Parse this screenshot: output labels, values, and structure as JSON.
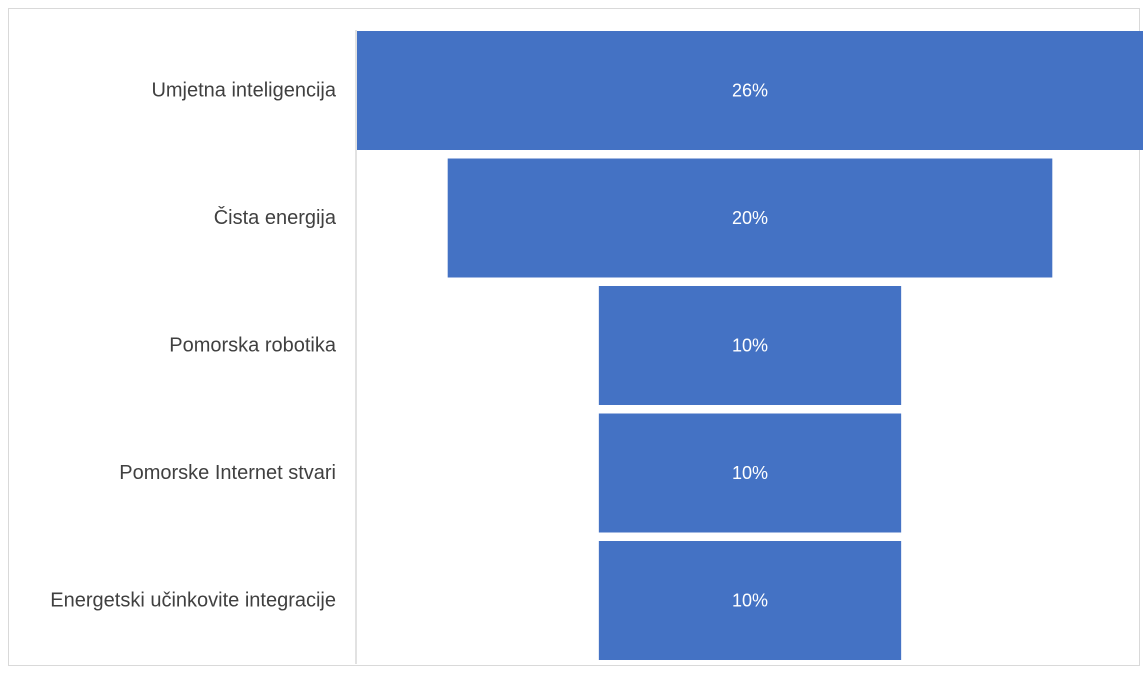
{
  "chart_data": {
    "type": "bar",
    "subtype": "funnel",
    "orientation": "horizontal",
    "categories": [
      "Umjetna inteligencija",
      "Čista energija",
      "Pomorska robotika",
      "Pomorske Internet stvari",
      "Energetski učinkovite integracije"
    ],
    "values": [
      26,
      20,
      10,
      10,
      10
    ],
    "value_labels": [
      "26%",
      "20%",
      "10%",
      "10%",
      "10%"
    ],
    "unit": "%",
    "title": "",
    "xlabel": "",
    "ylabel": "",
    "grid": false,
    "legend": "none",
    "colors": {
      "bar": "#4472C4",
      "label": "#404040",
      "value_label": "#FFFFFF",
      "axis": "#D9D9D9"
    }
  }
}
